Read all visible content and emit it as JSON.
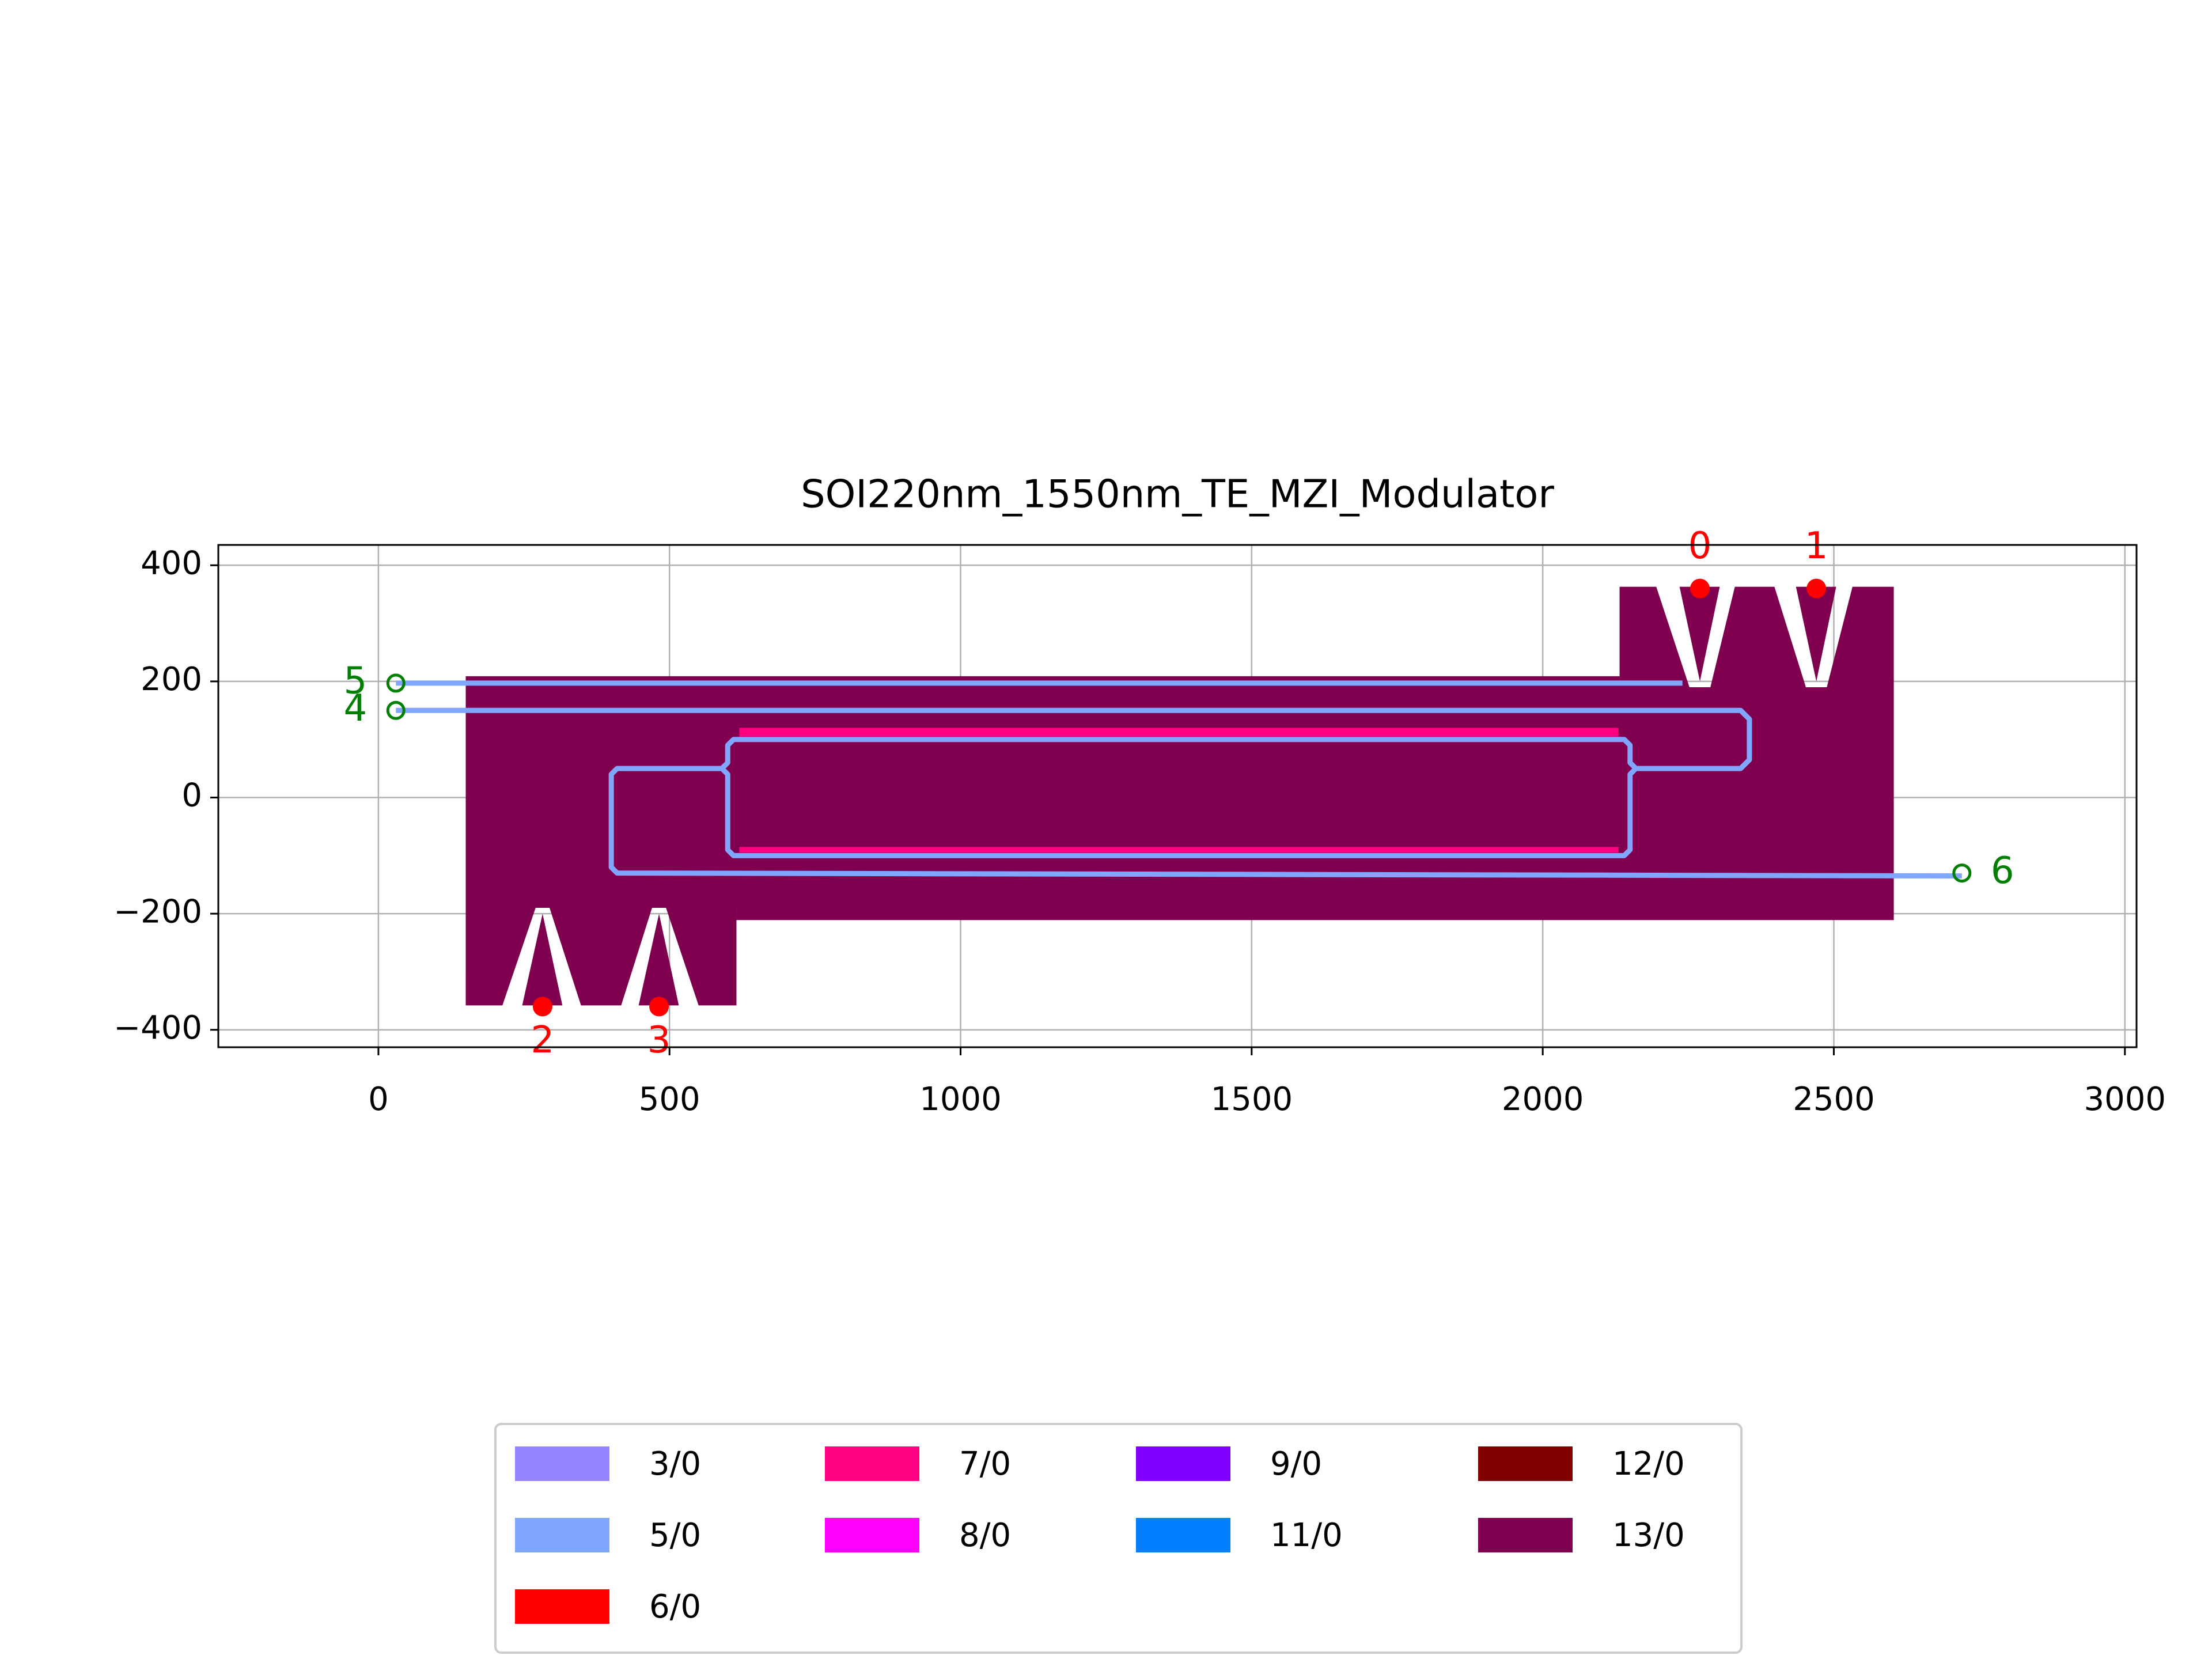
{
  "chart_data": {
    "type": "layout",
    "title": "SOI220nm_1550nm_TE_MZI_Modulator",
    "xlim": [
      -275,
      3020
    ],
    "ylim": [
      -430,
      435
    ],
    "xticks": [
      0,
      500,
      1000,
      1500,
      2000,
      2500,
      3000
    ],
    "yticks": [
      {
        "value": -400,
        "label": "−400"
      },
      {
        "value": -200,
        "label": "−200"
      },
      0,
      200,
      400
    ],
    "grid": true,
    "layers": [
      {
        "name": "3/0",
        "color": "#9584ff",
        "polygons": [],
        "paths": []
      },
      {
        "name": "5/0",
        "color": "#80a6ff",
        "polygons": [],
        "paths": [
          {
            "x": [
              30,
              2240
            ],
            "y": [
              197,
              197
            ]
          },
          {
            "x": [
              30,
              2340,
              2355,
              2355,
              2340,
              2160,
              2150,
              2150,
              2140,
              610,
              600,
              600,
              590,
              410,
              400,
              400,
              410,
              2720
            ],
            "y": [
              150,
              150,
              135,
              65,
              50,
              50,
              60,
              90,
              100,
              100,
              90,
              60,
              50,
              50,
              40,
              -120,
              -130,
              -135
            ]
          },
          {
            "x": [
              590,
              600,
              600,
              610,
              2140,
              2150,
              2150,
              2160
            ],
            "y": [
              50,
              40,
              -90,
              -100,
              -100,
              -90,
              40,
              50
            ]
          }
        ]
      },
      {
        "name": "6/0",
        "color": "#ff0000",
        "polygons": [],
        "paths": []
      },
      {
        "name": "7/0",
        "color": "#ff0080",
        "polygons": [
          {
            "x": [
              620,
              2130,
              2130,
              620
            ],
            "y": [
              120,
              120,
              105,
              105
            ]
          },
          {
            "x": [
              620,
              2130,
              2130,
              620
            ],
            "y": [
              -85,
              -85,
              -95,
              -95
            ]
          }
        ],
        "paths": []
      },
      {
        "name": "8/0",
        "color": "#ff00ff",
        "polygons": [],
        "paths": []
      },
      {
        "name": "9/0",
        "color": "#8000ff",
        "polygons": [],
        "paths": []
      },
      {
        "name": "11/0",
        "color": "#0080ff",
        "polygons": [],
        "paths": []
      },
      {
        "name": "12/0",
        "color": "#800000",
        "polygons": [],
        "paths": []
      },
      {
        "name": "13/0",
        "color": "#800050",
        "polygons": [
          {
            "x": [
              150,
              2132,
              2132,
              2603,
              2603,
              615,
              615,
              150
            ],
            "y": [
              209,
              209,
              190,
              190,
              -211,
              -211,
              -190,
              -190
            ]
          },
          {
            "x": [
              150,
              270,
              213,
              150
            ],
            "y": [
              -190,
              -190,
              -358,
              -358
            ]
          },
          {
            "x": [
              282,
              316,
              247
            ],
            "y": [
              -200,
              -358,
              -358
            ]
          },
          {
            "x": [
              294,
              470,
              417,
              348
            ],
            "y": [
              -190,
              -190,
              -358,
              -358
            ]
          },
          {
            "x": [
              482,
              516,
              447
            ],
            "y": [
              -200,
              -358,
              -358
            ]
          },
          {
            "x": [
              494,
              615,
              615,
              550
            ],
            "y": [
              -190,
              -190,
              -358,
              -358
            ]
          },
          {
            "x": [
              2132,
              2195,
              2252,
              2132
            ],
            "y": [
              363,
              363,
              190,
              190
            ]
          },
          {
            "x": [
              2235,
              2304,
              2270
            ],
            "y": [
              363,
              363,
              200
            ]
          },
          {
            "x": [
              2330,
              2398,
              2452,
              2288
            ],
            "y": [
              363,
              363,
              190,
              190
            ]
          },
          {
            "x": [
              2435,
              2504,
              2470
            ],
            "y": [
              363,
              363,
              200
            ]
          },
          {
            "x": [
              2532,
              2603,
              2603,
              2488
            ],
            "y": [
              363,
              363,
              190,
              190
            ]
          }
        ],
        "paths": []
      }
    ],
    "ports": [
      {
        "label": "0",
        "x": 2270,
        "y": 360,
        "color": "#ff0000",
        "side": "above",
        "marker": "dot"
      },
      {
        "label": "1",
        "x": 2470,
        "y": 360,
        "color": "#ff0000",
        "side": "above",
        "marker": "dot"
      },
      {
        "label": "2",
        "x": 282,
        "y": -360,
        "color": "#ff0000",
        "side": "below",
        "marker": "dot"
      },
      {
        "label": "3",
        "x": 482,
        "y": -360,
        "color": "#ff0000",
        "side": "below",
        "marker": "dot"
      },
      {
        "label": "4",
        "x": 30,
        "y": 150,
        "color": "#008000",
        "side": "left",
        "marker": "ring"
      },
      {
        "label": "5",
        "x": 30,
        "y": 197,
        "color": "#008000",
        "side": "left",
        "marker": "ring"
      },
      {
        "label": "6",
        "x": 2720,
        "y": -130,
        "color": "#008000",
        "side": "right",
        "marker": "ring"
      }
    ]
  }
}
